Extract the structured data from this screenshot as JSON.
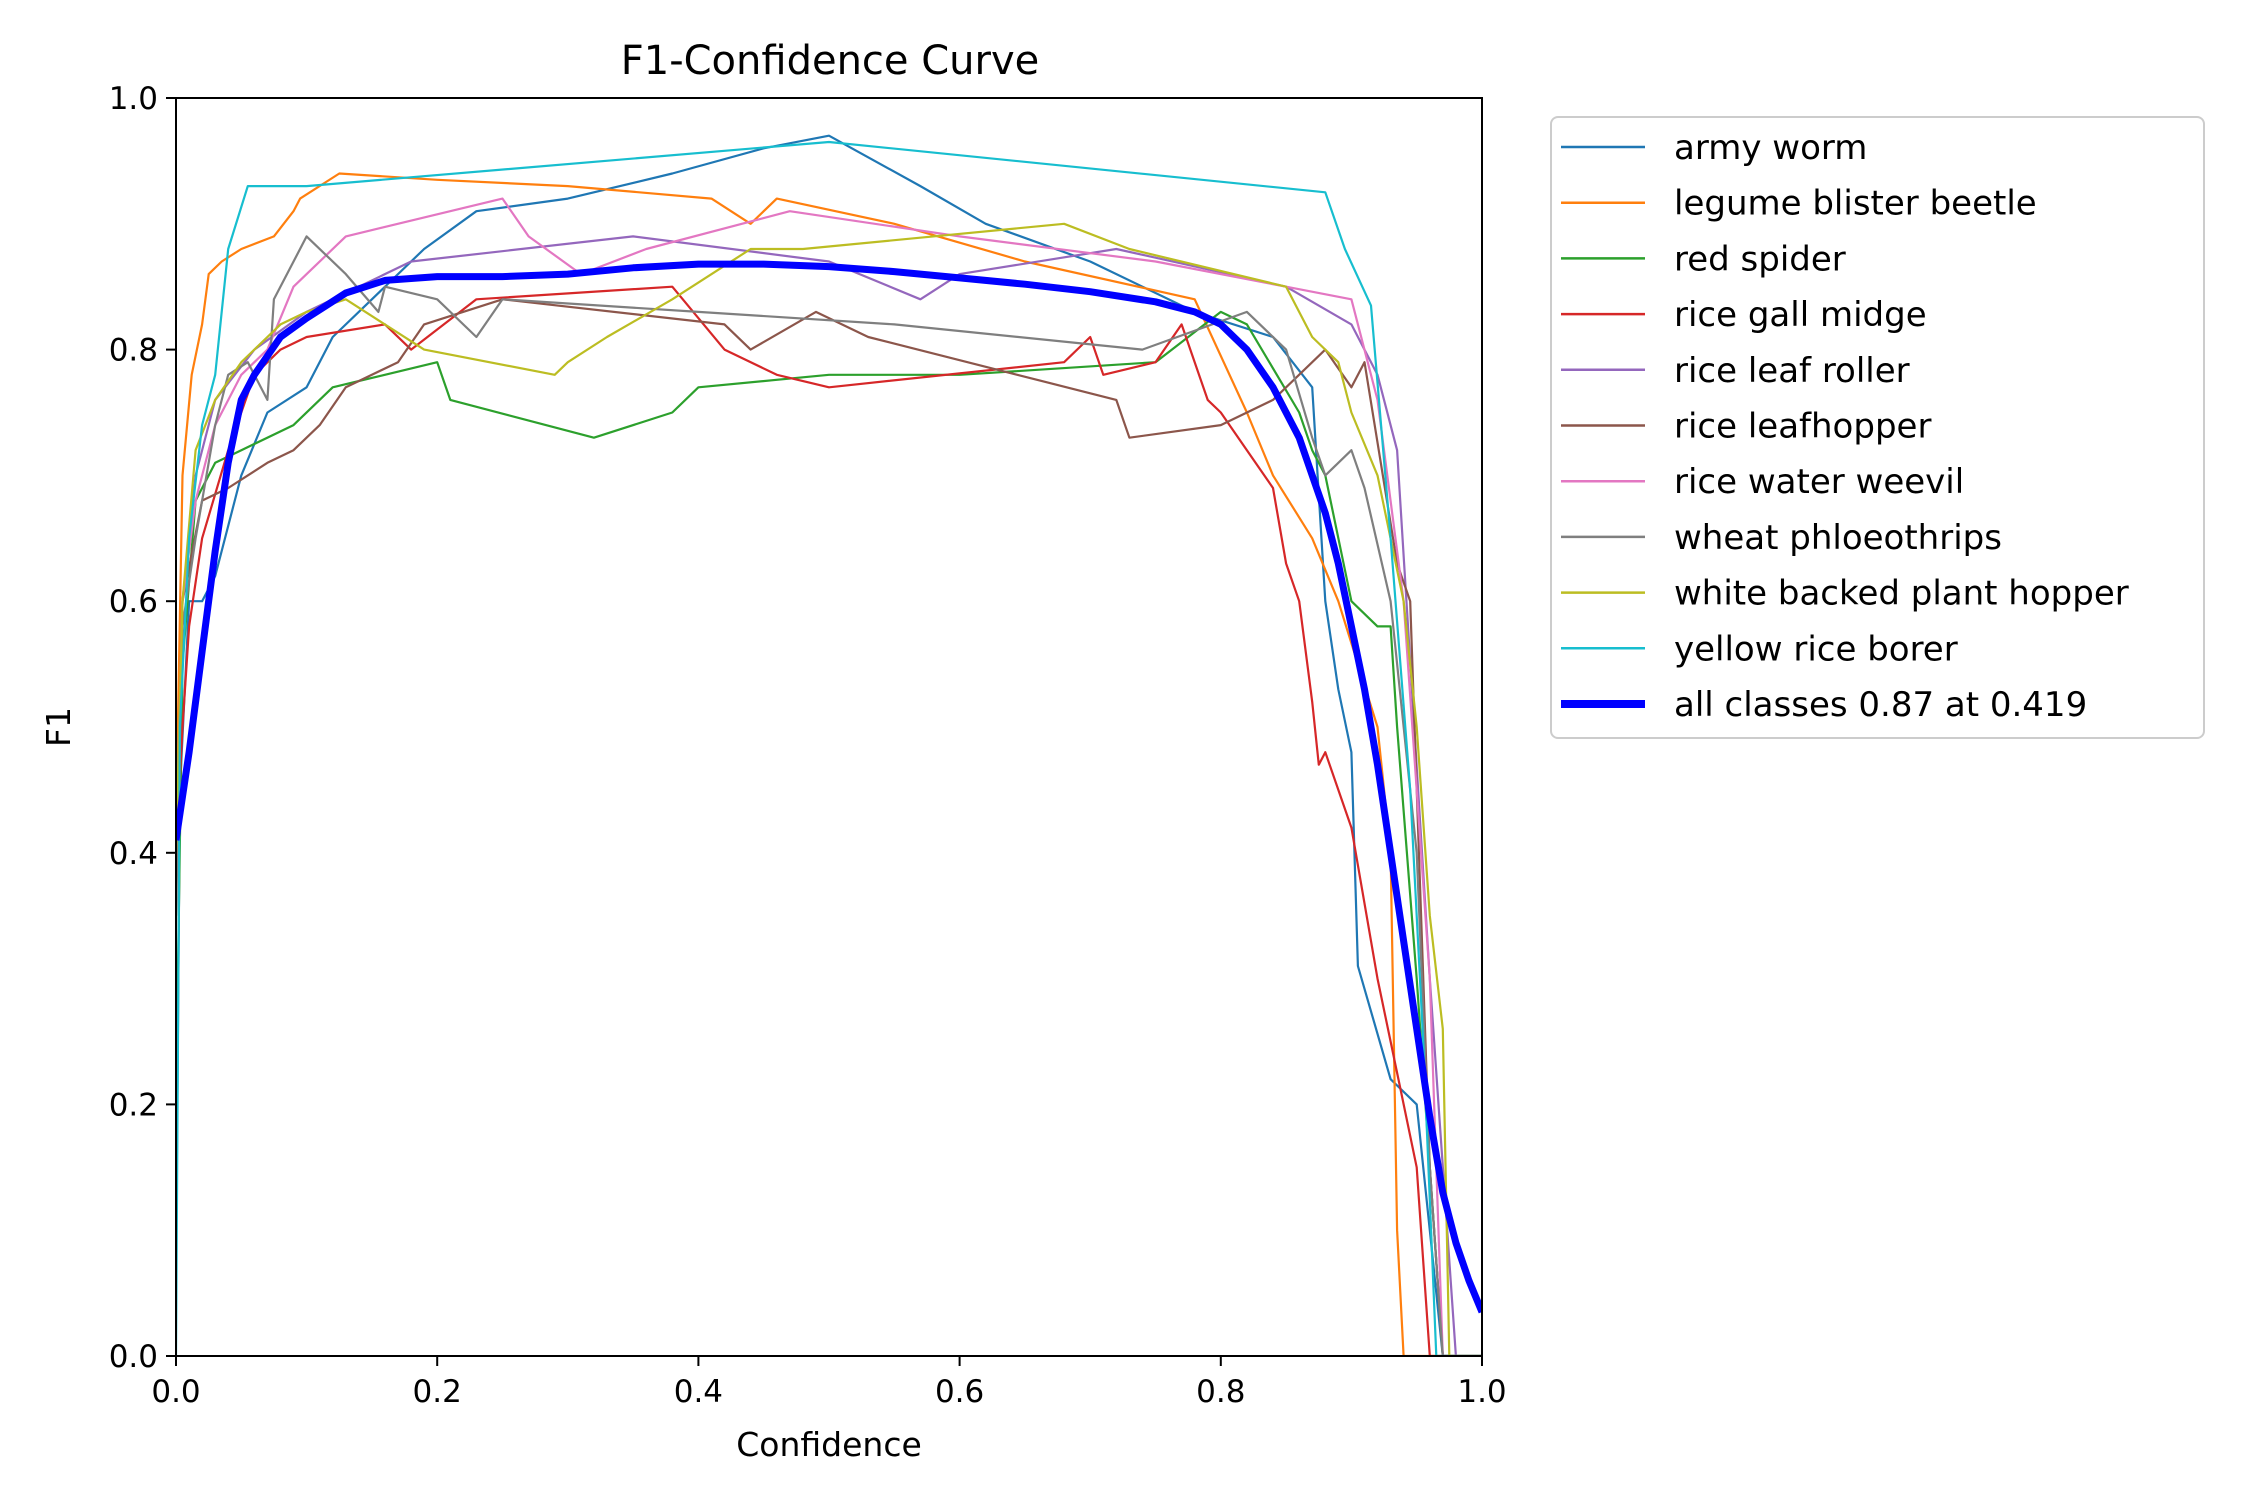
{
  "chart_data": {
    "type": "line",
    "title": "F1-Confidence Curve",
    "xlabel": "Confidence",
    "ylabel": "F1",
    "xlim": [
      0,
      1
    ],
    "ylim": [
      0,
      1
    ],
    "xticks": [
      "0.0",
      "0.2",
      "0.4",
      "0.6",
      "0.8",
      "1.0"
    ],
    "yticks": [
      "0.0",
      "0.2",
      "0.4",
      "0.6",
      "0.8",
      "1.0"
    ],
    "grid": false,
    "legend_position": "outside-top-right",
    "series": [
      {
        "name": "army worm",
        "color": "#1f77b4",
        "x": [
          0,
          0.003,
          0.01,
          0.02,
          0.03,
          0.05,
          0.07,
          0.1,
          0.12,
          0.15,
          0.19,
          0.23,
          0.3,
          0.38,
          0.45,
          0.5,
          0.57,
          0.62,
          0.7,
          0.78,
          0.84,
          0.87,
          0.88,
          0.89,
          0.9,
          0.905,
          0.93,
          0.95,
          0.96,
          0.97,
          1.0
        ],
        "y": [
          0.07,
          0.45,
          0.6,
          0.6,
          0.62,
          0.7,
          0.75,
          0.77,
          0.81,
          0.84,
          0.88,
          0.91,
          0.92,
          0.94,
          0.96,
          0.97,
          0.93,
          0.9,
          0.87,
          0.83,
          0.81,
          0.77,
          0.6,
          0.53,
          0.48,
          0.31,
          0.22,
          0.2,
          0.1,
          0.0,
          0.0
        ]
      },
      {
        "name": "legume blister beetle",
        "color": "#ff7f0e",
        "x": [
          0,
          0.005,
          0.012,
          0.02,
          0.025,
          0.035,
          0.05,
          0.075,
          0.09,
          0.095,
          0.125,
          0.2,
          0.3,
          0.41,
          0.44,
          0.46,
          0.55,
          0.65,
          0.78,
          0.82,
          0.84,
          0.87,
          0.89,
          0.905,
          0.92,
          0.93,
          0.935,
          0.94,
          1.0
        ],
        "y": [
          0.42,
          0.7,
          0.78,
          0.82,
          0.86,
          0.87,
          0.88,
          0.89,
          0.91,
          0.92,
          0.94,
          0.935,
          0.93,
          0.92,
          0.9,
          0.92,
          0.9,
          0.87,
          0.84,
          0.75,
          0.7,
          0.65,
          0.6,
          0.55,
          0.5,
          0.4,
          0.1,
          0.0,
          0.0
        ]
      },
      {
        "name": "red spider",
        "color": "#2ca02c",
        "x": [
          0,
          0.005,
          0.015,
          0.025,
          0.03,
          0.05,
          0.09,
          0.12,
          0.2,
          0.21,
          0.32,
          0.38,
          0.4,
          0.5,
          0.6,
          0.75,
          0.8,
          0.82,
          0.86,
          0.87,
          0.88,
          0.9,
          0.92,
          0.93,
          0.935,
          0.95,
          0.96,
          0.97,
          1.0
        ],
        "y": [
          0.2,
          0.55,
          0.68,
          0.7,
          0.71,
          0.72,
          0.74,
          0.77,
          0.79,
          0.76,
          0.73,
          0.75,
          0.77,
          0.78,
          0.78,
          0.79,
          0.83,
          0.82,
          0.75,
          0.72,
          0.7,
          0.6,
          0.58,
          0.58,
          0.5,
          0.3,
          0.15,
          0.0,
          0.0
        ]
      },
      {
        "name": "rice gall midge",
        "color": "#d62728",
        "x": [
          0,
          0.005,
          0.01,
          0.02,
          0.04,
          0.06,
          0.08,
          0.1,
          0.16,
          0.18,
          0.23,
          0.38,
          0.42,
          0.46,
          0.5,
          0.68,
          0.7,
          0.71,
          0.75,
          0.77,
          0.79,
          0.8,
          0.82,
          0.84,
          0.85,
          0.86,
          0.87,
          0.875,
          0.88,
          0.9,
          0.92,
          0.93,
          0.95,
          0.96,
          1.0
        ],
        "y": [
          0.4,
          0.5,
          0.58,
          0.65,
          0.72,
          0.78,
          0.8,
          0.81,
          0.82,
          0.8,
          0.84,
          0.85,
          0.8,
          0.78,
          0.77,
          0.79,
          0.81,
          0.78,
          0.79,
          0.82,
          0.76,
          0.75,
          0.72,
          0.69,
          0.63,
          0.6,
          0.52,
          0.47,
          0.48,
          0.42,
          0.3,
          0.25,
          0.15,
          0.0,
          0.0
        ]
      },
      {
        "name": "rice leaf roller",
        "color": "#9467bd",
        "x": [
          0,
          0.005,
          0.015,
          0.03,
          0.06,
          0.1,
          0.18,
          0.35,
          0.5,
          0.57,
          0.6,
          0.72,
          0.85,
          0.9,
          0.92,
          0.935,
          0.96,
          0.98,
          1.0
        ],
        "y": [
          0.4,
          0.6,
          0.7,
          0.76,
          0.8,
          0.83,
          0.87,
          0.89,
          0.87,
          0.84,
          0.86,
          0.88,
          0.85,
          0.82,
          0.78,
          0.72,
          0.3,
          0.0,
          0.0
        ]
      },
      {
        "name": "rice leafhopper",
        "color": "#8c564b",
        "x": [
          0,
          0.005,
          0.02,
          0.04,
          0.055,
          0.07,
          0.09,
          0.11,
          0.13,
          0.17,
          0.19,
          0.25,
          0.42,
          0.44,
          0.49,
          0.53,
          0.72,
          0.73,
          0.8,
          0.84,
          0.88,
          0.9,
          0.91,
          0.935,
          0.945,
          0.96,
          0.97,
          1.0
        ],
        "y": [
          0.4,
          0.6,
          0.68,
          0.69,
          0.7,
          0.71,
          0.72,
          0.74,
          0.77,
          0.79,
          0.82,
          0.84,
          0.82,
          0.8,
          0.83,
          0.81,
          0.76,
          0.73,
          0.74,
          0.76,
          0.8,
          0.77,
          0.79,
          0.63,
          0.6,
          0.15,
          0.0,
          0.0
        ]
      },
      {
        "name": "rice water weevil",
        "color": "#e377c2",
        "x": [
          0,
          0.005,
          0.015,
          0.03,
          0.05,
          0.07,
          0.09,
          0.13,
          0.25,
          0.27,
          0.31,
          0.36,
          0.47,
          0.6,
          0.75,
          0.85,
          0.9,
          0.92,
          0.94,
          0.96,
          0.97,
          1.0
        ],
        "y": [
          0.4,
          0.6,
          0.68,
          0.74,
          0.78,
          0.8,
          0.85,
          0.89,
          0.92,
          0.89,
          0.86,
          0.88,
          0.91,
          0.89,
          0.87,
          0.85,
          0.84,
          0.76,
          0.6,
          0.3,
          0.0,
          0.0
        ]
      },
      {
        "name": "wheat phloeothrips",
        "color": "#7f7f7f",
        "x": [
          0,
          0.005,
          0.015,
          0.03,
          0.04,
          0.055,
          0.07,
          0.075,
          0.1,
          0.13,
          0.155,
          0.16,
          0.2,
          0.23,
          0.25,
          0.4,
          0.55,
          0.74,
          0.82,
          0.85,
          0.87,
          0.88,
          0.9,
          0.91,
          0.93,
          0.95,
          0.96,
          0.97,
          1.0
        ],
        "y": [
          0.35,
          0.58,
          0.65,
          0.74,
          0.78,
          0.79,
          0.76,
          0.84,
          0.89,
          0.86,
          0.83,
          0.85,
          0.84,
          0.81,
          0.84,
          0.83,
          0.82,
          0.8,
          0.83,
          0.8,
          0.73,
          0.7,
          0.72,
          0.69,
          0.6,
          0.4,
          0.15,
          0.0,
          0.0
        ]
      },
      {
        "name": "white backed plant hopper",
        "color": "#bcbd22",
        "x": [
          0,
          0.005,
          0.015,
          0.03,
          0.05,
          0.08,
          0.1,
          0.13,
          0.19,
          0.29,
          0.3,
          0.33,
          0.38,
          0.44,
          0.48,
          0.68,
          0.73,
          0.85,
          0.87,
          0.89,
          0.9,
          0.92,
          0.94,
          0.95,
          0.96,
          0.97,
          0.975,
          1.0
        ],
        "y": [
          0.4,
          0.6,
          0.72,
          0.76,
          0.79,
          0.82,
          0.83,
          0.84,
          0.8,
          0.78,
          0.79,
          0.81,
          0.84,
          0.88,
          0.88,
          0.9,
          0.88,
          0.85,
          0.81,
          0.79,
          0.75,
          0.7,
          0.6,
          0.5,
          0.35,
          0.26,
          0.0,
          0.0
        ]
      },
      {
        "name": "yellow rice borer",
        "color": "#17becf",
        "x": [
          0,
          0.003,
          0.01,
          0.02,
          0.03,
          0.04,
          0.055,
          0.1,
          0.5,
          0.88,
          0.895,
          0.915,
          0.93,
          0.945,
          0.955,
          0.965,
          1.0
        ],
        "y": [
          0.0,
          0.5,
          0.65,
          0.74,
          0.78,
          0.88,
          0.93,
          0.93,
          0.965,
          0.925,
          0.88,
          0.835,
          0.65,
          0.45,
          0.25,
          0.0,
          0.0
        ]
      },
      {
        "name": "all classes 0.87 at 0.419",
        "color": "#0000ff",
        "thick": true,
        "x": [
          0,
          0.01,
          0.02,
          0.03,
          0.04,
          0.05,
          0.06,
          0.08,
          0.1,
          0.13,
          0.16,
          0.2,
          0.25,
          0.3,
          0.35,
          0.4,
          0.45,
          0.5,
          0.55,
          0.6,
          0.65,
          0.7,
          0.75,
          0.78,
          0.8,
          0.82,
          0.84,
          0.86,
          0.87,
          0.88,
          0.89,
          0.9,
          0.91,
          0.92,
          0.93,
          0.94,
          0.95,
          0.96,
          0.97,
          0.98,
          0.99,
          1.0
        ],
        "y": [
          0.41,
          0.48,
          0.56,
          0.64,
          0.71,
          0.76,
          0.78,
          0.81,
          0.825,
          0.845,
          0.855,
          0.858,
          0.858,
          0.86,
          0.865,
          0.868,
          0.868,
          0.866,
          0.862,
          0.857,
          0.852,
          0.846,
          0.838,
          0.83,
          0.82,
          0.8,
          0.77,
          0.73,
          0.7,
          0.67,
          0.63,
          0.58,
          0.53,
          0.47,
          0.4,
          0.33,
          0.26,
          0.19,
          0.13,
          0.09,
          0.06,
          0.035
        ]
      }
    ]
  }
}
